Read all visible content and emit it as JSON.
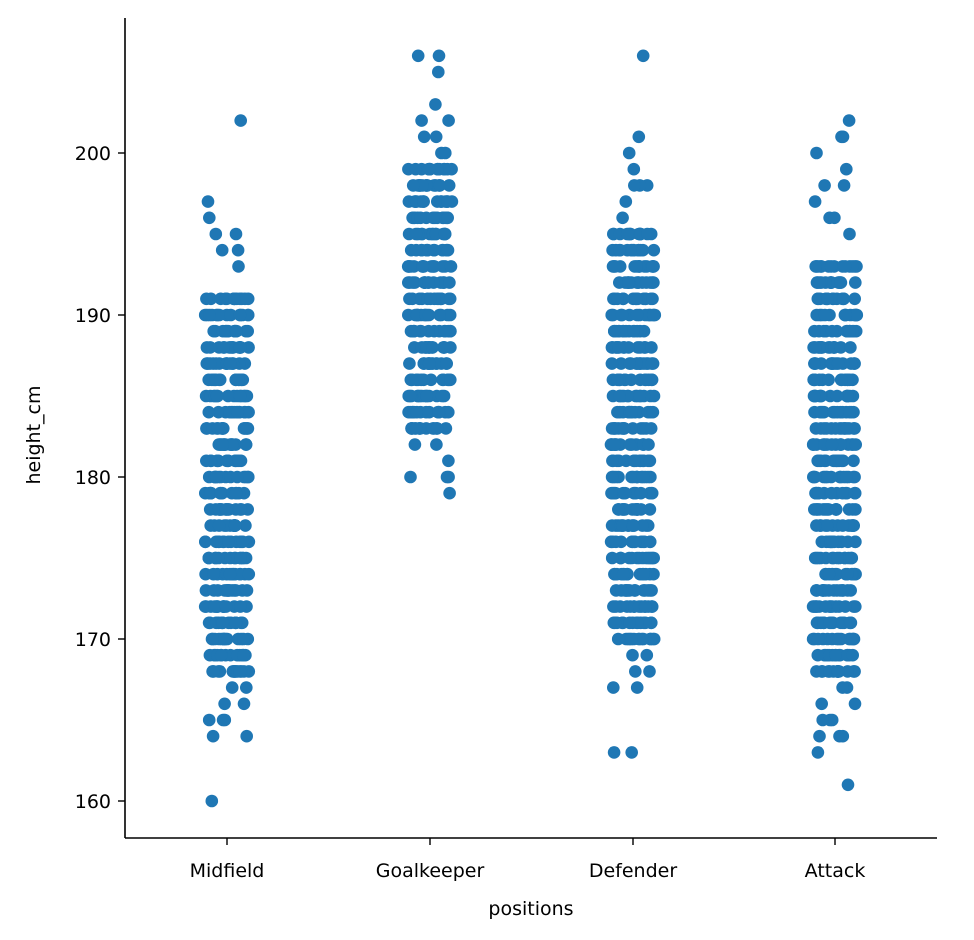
{
  "chart_data": {
    "type": "scatter",
    "subtype": "strip",
    "title": "",
    "xlabel": "positions",
    "ylabel": "height_cm",
    "categories": [
      "Midfield",
      "Goalkeeper",
      "Defender",
      "Attack"
    ],
    "yticks": [
      160,
      170,
      180,
      190,
      200
    ],
    "ylim": [
      157.8,
      208.8
    ],
    "grid": false,
    "legend": null,
    "marker_color": "#1f77b4",
    "series": [
      {
        "name": "Midfield",
        "min": 160,
        "max": 202,
        "dense_range": [
          168,
          191
        ],
        "outliers": [
          160,
          164,
          164,
          165,
          165,
          165,
          166,
          166,
          167,
          167,
          193,
          194,
          194,
          195,
          195,
          196,
          197,
          202
        ]
      },
      {
        "name": "Goalkeeper",
        "min": 179,
        "max": 206,
        "dense_range": [
          183,
          199
        ],
        "outliers": [
          179,
          180,
          180,
          180,
          181,
          182,
          182,
          200,
          200,
          201,
          201,
          202,
          202,
          203,
          205,
          206,
          206
        ]
      },
      {
        "name": "Defender",
        "min": 163,
        "max": 206,
        "dense_range": [
          170,
          195
        ],
        "outliers": [
          163,
          163,
          167,
          167,
          168,
          168,
          169,
          169,
          196,
          197,
          198,
          198,
          198,
          199,
          200,
          201,
          206
        ]
      },
      {
        "name": "Attack",
        "min": 161,
        "max": 202,
        "dense_range": [
          168,
          193
        ],
        "outliers": [
          161,
          163,
          164,
          164,
          164,
          165,
          165,
          165,
          166,
          166,
          167,
          167,
          195,
          196,
          196,
          197,
          198,
          198,
          199,
          200,
          201,
          201,
          202
        ]
      }
    ]
  }
}
